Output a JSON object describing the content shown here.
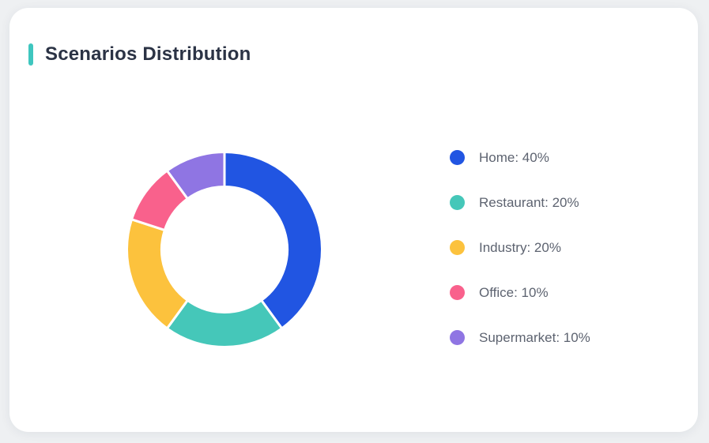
{
  "card": {
    "title": "Scenarios Distribution"
  },
  "colors": {
    "page_background": "#eef0f2",
    "card_background": "#ffffff",
    "accent_bar": "#3fc6bf",
    "title_text": "#2b3345",
    "legend_text": "#5d6370",
    "segment_border": "#ffffff"
  },
  "chart_data": {
    "type": "pie",
    "title": "Scenarios Distribution",
    "donut": true,
    "start_angle_deg": -90,
    "direction": "clockwise",
    "outer_radius_px": 125,
    "inner_radius_px": 78,
    "legend_position": "right",
    "legend_label_format": "{name}: {value}%",
    "series": [
      {
        "name": "Home",
        "value": 40,
        "color": "#2155e2"
      },
      {
        "name": "Restaurant",
        "value": 20,
        "color": "#45c7b9"
      },
      {
        "name": "Industry",
        "value": 20,
        "color": "#fcc23d"
      },
      {
        "name": "Office",
        "value": 10,
        "color": "#f9618c"
      },
      {
        "name": "Supermarket",
        "value": 10,
        "color": "#8f75e3"
      }
    ]
  }
}
